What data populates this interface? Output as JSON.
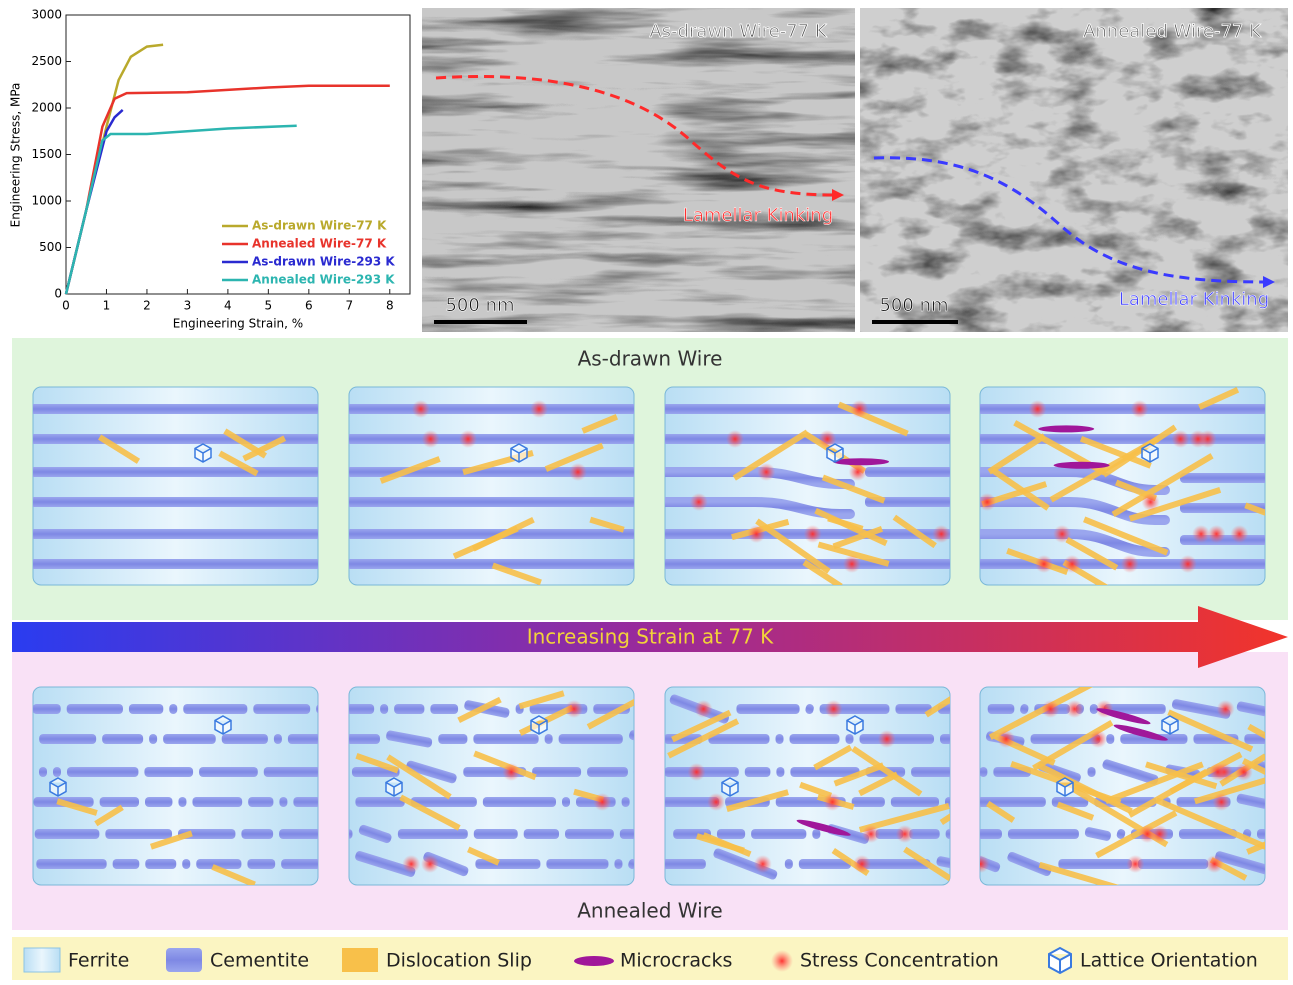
{
  "chart_data": {
    "type": "line",
    "x_label": "Engineering Strain, %",
    "y_label": "Engineering Stress, MPa",
    "xlim": [
      0,
      8.5
    ],
    "xticks": [
      0,
      1,
      2,
      3,
      4,
      5,
      6,
      7,
      8
    ],
    "ylim": [
      0,
      3000
    ],
    "yticks": [
      0,
      500,
      1000,
      1500,
      2000,
      2500,
      3000
    ],
    "legend": "lower right",
    "series": [
      {
        "name": "As-drawn Wire-77 K",
        "color": "#b9a92c",
        "x": [
          0,
          0.5,
          1,
          1.3,
          1.6,
          2,
          2.4
        ],
        "values": [
          0,
          900,
          1800,
          2300,
          2550,
          2660,
          2680
        ]
      },
      {
        "name": "Annealed Wire-77 K",
        "color": "#e8332b",
        "x": [
          0,
          0.5,
          0.9,
          1.2,
          1.5,
          3,
          5,
          6,
          8
        ],
        "values": [
          0,
          900,
          1800,
          2100,
          2160,
          2170,
          2220,
          2240,
          2240
        ]
      },
      {
        "name": "As-drawn Wire-293 K",
        "color": "#2a2ad0",
        "x": [
          0,
          0.5,
          1,
          1.2,
          1.4
        ],
        "values": [
          0,
          900,
          1750,
          1900,
          1980
        ]
      },
      {
        "name": "Annealed Wire-293 K",
        "color": "#2cb5b0",
        "x": [
          0,
          0.5,
          0.9,
          1.1,
          2,
          4,
          5.7
        ],
        "values": [
          0,
          900,
          1650,
          1720,
          1720,
          1780,
          1810
        ]
      }
    ]
  },
  "micrographs": [
    {
      "title": "As-drawn Wire-77 K",
      "annotation": "Lamellar Kinking",
      "scale_bar": "500 nm"
    },
    {
      "title": "Annealed Wire-77 K",
      "annotation": "Lamellar Kinking",
      "scale_bar": "500 nm"
    }
  ],
  "schematic": {
    "top_title": "As-drawn Wire",
    "arrow_label": "Increasing Strain at 77 K",
    "bottom_title": "Annealed Wire"
  },
  "legend": {
    "items": [
      "Ferrite",
      "Cementite",
      "Dislocation Slip",
      "Microcracks",
      "Stress Concentration",
      "Lattice Orientation"
    ]
  }
}
